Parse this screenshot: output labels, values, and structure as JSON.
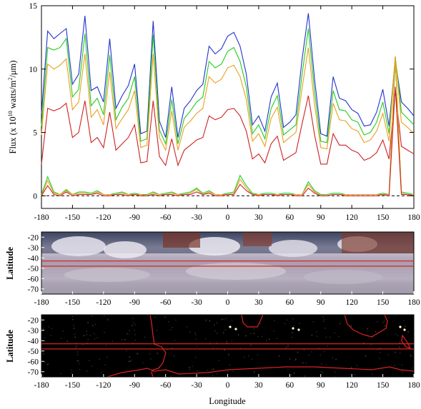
{
  "chart_data": [
    {
      "type": "line",
      "xlabel": "",
      "ylabel": "Flux (x 10",
      "ylabel_sup": "10",
      "ylabel_rest": " watts/m",
      "ylabel_sup2": "2",
      "ylabel_end": "/μm)",
      "xlim": [
        -180,
        180
      ],
      "ylim": [
        -1,
        15
      ],
      "x_ticks": [
        "-180",
        "-150",
        "-120",
        "-90",
        "-60",
        "-30",
        "0",
        "30",
        "60",
        "90",
        "120",
        "150",
        "180"
      ],
      "y_ticks": [
        "0",
        "5",
        "10",
        "15"
      ],
      "x": [
        -180,
        -174,
        -168,
        -162,
        -156,
        -150,
        -144,
        -138,
        -132,
        -126,
        -120,
        -114,
        -108,
        -102,
        -96,
        -90,
        -84,
        -78,
        -72,
        -66,
        -60,
        -54,
        -48,
        -42,
        -36,
        -30,
        -24,
        -18,
        -12,
        -6,
        0,
        6,
        12,
        18,
        24,
        30,
        36,
        42,
        48,
        54,
        60,
        66,
        72,
        78,
        84,
        90,
        96,
        102,
        108,
        114,
        120,
        126,
        132,
        138,
        144,
        150,
        156,
        162,
        168,
        174,
        180
      ],
      "series": [
        {
          "color": "#2233cc",
          "values": [
            6.5,
            13,
            12.4,
            12.8,
            13.2,
            8.8,
            9.6,
            14.2,
            8.3,
            8.6,
            7.4,
            12.4,
            6.9,
            7.9,
            8.7,
            10.4,
            4.9,
            5.1,
            13.8,
            5.9,
            4.6,
            8.6,
            4.6,
            6.9,
            7.5,
            8.3,
            8.8,
            11.8,
            11.2,
            11.6,
            12.6,
            12.9,
            11.8,
            9.6,
            5.6,
            6.3,
            5.1,
            7.8,
            8.9,
            5.4,
            5.8,
            6.4,
            10.8,
            14.4,
            9.2,
            4.9,
            4.7,
            9.4,
            7.7,
            7.5,
            6.8,
            6.5,
            5.5,
            5.6,
            6.6,
            8.4,
            5.5,
            10.7,
            7.4,
            6.9,
            6.3
          ]
        },
        {
          "color": "#22cc22",
          "values": [
            5.5,
            11.7,
            11.5,
            11.7,
            12.4,
            7.8,
            8.4,
            12.8,
            7.1,
            7.7,
            6.4,
            11.1,
            6.0,
            7.0,
            7.7,
            9.4,
            4.3,
            4.5,
            12.7,
            5.2,
            4.1,
            7.6,
            4.1,
            6.1,
            6.7,
            7.4,
            7.8,
            10.6,
            10.1,
            10.4,
            11.4,
            11.7,
            10.6,
            8.6,
            4.9,
            5.6,
            4.5,
            6.9,
            7.9,
            4.8,
            5.2,
            5.6,
            9.6,
            13.2,
            8.2,
            4.3,
            4.2,
            8.3,
            6.8,
            6.7,
            6.0,
            5.8,
            4.8,
            5.0,
            5.8,
            7.4,
            4.9,
            11.0,
            6.6,
            6.1,
            5.6
          ]
        },
        {
          "color": "#e8a020",
          "values": [
            4.8,
            10.4,
            10.0,
            10.3,
            10.8,
            6.8,
            7.4,
            11.2,
            6.2,
            6.8,
            5.6,
            9.8,
            5.3,
            6.1,
            6.8,
            8.3,
            3.8,
            4.0,
            11.2,
            4.6,
            3.6,
            6.7,
            3.6,
            5.4,
            5.9,
            6.5,
            6.9,
            9.4,
            8.9,
            9.2,
            10.1,
            10.3,
            9.4,
            7.6,
            4.3,
            4.9,
            3.9,
            6.1,
            7.0,
            4.2,
            4.6,
            5.0,
            8.5,
            11.7,
            7.2,
            3.8,
            3.7,
            7.3,
            6.0,
            5.9,
            5.3,
            5.1,
            4.2,
            4.4,
            5.1,
            6.5,
            4.3,
            11.0,
            5.8,
            5.4,
            4.9
          ]
        },
        {
          "color": "#cc2222",
          "values": [
            2.5,
            6.9,
            6.7,
            6.9,
            7.3,
            4.6,
            5.0,
            7.5,
            4.2,
            4.6,
            3.8,
            6.6,
            3.6,
            4.1,
            4.6,
            5.6,
            2.6,
            2.7,
            7.5,
            3.1,
            2.4,
            4.5,
            2.4,
            3.6,
            4.0,
            4.4,
            4.6,
            6.3,
            6.0,
            6.2,
            6.8,
            6.9,
            6.3,
            5.1,
            2.9,
            3.3,
            2.6,
            4.1,
            4.7,
            2.8,
            3.1,
            3.4,
            5.7,
            7.9,
            4.8,
            2.5,
            2.5,
            4.9,
            4.0,
            4.0,
            3.6,
            3.4,
            2.8,
            3.0,
            3.4,
            4.4,
            2.9,
            8.4,
            3.9,
            3.6,
            3.3
          ]
        },
        {
          "color": "#22cc22",
          "values": [
            0.1,
            1.5,
            0.3,
            0.1,
            0.5,
            0.1,
            0.3,
            0.3,
            0.2,
            0.4,
            0.1,
            0.1,
            0.2,
            0.3,
            0.1,
            0.2,
            0.1,
            0.1,
            0.3,
            0.1,
            0.2,
            0.3,
            0.1,
            0.2,
            0.3,
            0.6,
            0.2,
            0.4,
            0.1,
            0.1,
            0.2,
            0.3,
            1.6,
            0.8,
            0.2,
            0.1,
            0.2,
            0.2,
            0.1,
            0.2,
            0.2,
            0.1,
            0.1,
            1.1,
            0.4,
            0.1,
            0.1,
            0.2,
            0.2,
            0.1,
            0.1,
            0.1,
            0.1,
            0.1,
            0.1,
            0.2,
            0.1,
            10.7,
            0.3,
            0.2,
            0.1
          ]
        },
        {
          "color": "#e8a020",
          "values": [
            0.0,
            1.2,
            0.2,
            0.1,
            0.4,
            0.1,
            0.2,
            0.2,
            0.1,
            0.3,
            0.1,
            0.1,
            0.1,
            0.2,
            0.1,
            0.1,
            0.1,
            0.0,
            0.2,
            0.1,
            0.1,
            0.2,
            0.1,
            0.1,
            0.2,
            0.5,
            0.1,
            0.3,
            0.1,
            0.1,
            0.1,
            0.2,
            1.3,
            0.6,
            0.1,
            0.1,
            0.1,
            0.1,
            0.1,
            0.1,
            0.1,
            0.1,
            0.1,
            0.9,
            0.3,
            0.0,
            0.0,
            0.1,
            0.1,
            0.1,
            0.1,
            0.1,
            0.1,
            0.1,
            0.1,
            0.1,
            0.1,
            10.9,
            0.2,
            0.1,
            0.1
          ]
        },
        {
          "color": "#cc2222",
          "values": [
            0.0,
            0.8,
            0.1,
            0.0,
            0.3,
            0.0,
            0.1,
            0.1,
            0.1,
            0.2,
            0.0,
            0.0,
            0.1,
            0.1,
            0.0,
            0.1,
            0.0,
            0.0,
            0.1,
            0.0,
            0.1,
            0.1,
            0.0,
            0.1,
            0.1,
            0.3,
            0.1,
            0.2,
            0.0,
            0.0,
            0.1,
            0.1,
            0.9,
            0.4,
            0.1,
            0.0,
            0.1,
            0.1,
            0.0,
            0.1,
            0.1,
            0.0,
            0.0,
            0.6,
            0.2,
            0.0,
            0.0,
            0.1,
            0.1,
            0.0,
            0.0,
            0.0,
            0.0,
            0.0,
            0.0,
            0.1,
            0.0,
            8.6,
            0.1,
            0.1,
            0.0
          ]
        }
      ],
      "reference_line": {
        "y": 0,
        "style": "dashed",
        "color": "#000000"
      }
    },
    {
      "type": "heatmap",
      "ylabel": "Latitude",
      "xlim": [
        -180,
        180
      ],
      "ylim": [
        -75,
        -15
      ],
      "x_ticks": [
        "-180",
        "-150",
        "-120",
        "-90",
        "-60",
        "-30",
        "0",
        "30",
        "60",
        "90",
        "120",
        "150",
        "180"
      ],
      "y_ticks": [
        "-20",
        "-30",
        "-40",
        "-50",
        "-60",
        "-70"
      ],
      "band_lines": [
        -43,
        -48
      ],
      "band_color": "#dd2222"
    },
    {
      "type": "heatmap",
      "ylabel": "Latitude",
      "xlabel": "Longitude",
      "xlim": [
        -180,
        180
      ],
      "ylim": [
        -75,
        -15
      ],
      "x_ticks": [
        "-180",
        "-150",
        "-120",
        "-90",
        "-60",
        "-30",
        "0",
        "30",
        "60",
        "90",
        "120",
        "150",
        "180"
      ],
      "y_ticks": [
        "-20",
        "-30",
        "-40",
        "-50",
        "-60",
        "-70"
      ],
      "band_lines": [
        -43,
        -48
      ],
      "band_color": "#dd2222",
      "coastline_color": "#dd2222",
      "background": "#000000"
    }
  ]
}
